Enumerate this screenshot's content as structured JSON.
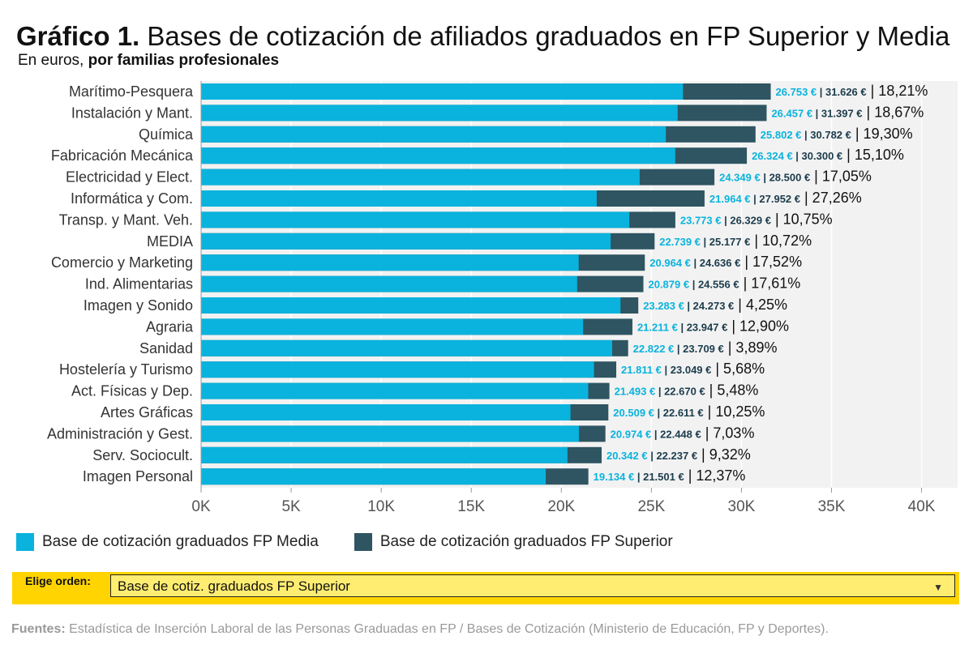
{
  "title": {
    "prefix": "Gráfico 1.",
    "text": "Bases de cotización de afiliados graduados en FP Superior y Media"
  },
  "subtitle": {
    "prefix": "En euros,",
    "emphasis": "por familias profesionales"
  },
  "colors": {
    "media": "#0ab3dd",
    "superior": "#2e5561",
    "plot_bg": "#f2f2f2",
    "media_label": "#0ab3dd",
    "superior_label": "#1c3c4c"
  },
  "legend": [
    {
      "name": "Base de cotización graduados FP Media",
      "color": "#0ab3dd"
    },
    {
      "name": "Base de cotización graduados FP Superior",
      "color": "#2e5561"
    }
  ],
  "control": {
    "label": "Elige orden:",
    "selected": "Base de cotiz. graduados FP Superior"
  },
  "source": {
    "prefix": "Fuentes:",
    "text": "Estadística de Inserción Laboral de las Personas Graduadas en FP / Bases de Cotización (Ministerio de Educación, FP y Deportes)."
  },
  "chart_data": {
    "type": "bar",
    "orientation": "horizontal",
    "xlim": [
      0,
      42000
    ],
    "xticks": [
      0,
      5000,
      10000,
      15000,
      20000,
      25000,
      30000,
      35000,
      40000
    ],
    "xtick_labels": [
      "0K",
      "5K",
      "10K",
      "15K",
      "20K",
      "25K",
      "30K",
      "35K",
      "40K"
    ],
    "grid": true,
    "legend_position": "bottom-left",
    "categories": [
      "Marítimo-Pesquera",
      "Instalación y Mant.",
      "Química",
      "Fabricación Mecánica",
      "Electricidad y Elect.",
      "Informática y Com.",
      "Transp. y Mant. Veh.",
      "MEDIA",
      "Comercio y Marketing",
      "Ind. Alimentarias",
      "Imagen y Sonido",
      "Agraria",
      "Sanidad",
      "Hostelería y Turismo",
      "Act. Físicas y Dep.",
      "Artes Gráficas",
      "Administración y Gest.",
      "Serv. Sociocult.",
      "Imagen Personal"
    ],
    "series": [
      {
        "name": "Base de cotización graduados FP Media",
        "values": [
          26753,
          26457,
          25802,
          26324,
          24349,
          21964,
          23773,
          22739,
          20964,
          20879,
          23283,
          21211,
          22822,
          21811,
          21493,
          20509,
          20974,
          20342,
          19134
        ]
      },
      {
        "name": "Base de cotización graduados FP Superior",
        "values": [
          31626,
          31397,
          30782,
          30300,
          28500,
          27952,
          26329,
          25177,
          24636,
          24556,
          24273,
          23947,
          23709,
          23049,
          22670,
          22611,
          22448,
          22237,
          21501
        ]
      }
    ],
    "labels_media": [
      "26.753 €",
      "26.457 €",
      "25.802 €",
      "26.324 €",
      "24.349 €",
      "21.964 €",
      "23.773 €",
      "22.739 €",
      "20.964 €",
      "20.879 €",
      "23.283 €",
      "21.211 €",
      "22.822 €",
      "21.811 €",
      "21.493 €",
      "20.509 €",
      "20.974 €",
      "20.342 €",
      "19.134 €"
    ],
    "labels_superior": [
      "31.626 €",
      "31.397 €",
      "30.782 €",
      "30.300 €",
      "28.500 €",
      "27.952 €",
      "26.329 €",
      "25.177 €",
      "24.636 €",
      "24.556 €",
      "24.273 €",
      "23.947 €",
      "23.709 €",
      "23.049 €",
      "22.670 €",
      "22.611 €",
      "22.448 €",
      "22.237 €",
      "21.501 €"
    ],
    "labels_pct": [
      "18,21%",
      "18,67%",
      "19,30%",
      "15,10%",
      "17,05%",
      "27,26%",
      "10,75%",
      "10,72%",
      "17,52%",
      "17,61%",
      "4,25%",
      "12,90%",
      "3,89%",
      "5,68%",
      "5,48%",
      "10,25%",
      "7,03%",
      "9,32%",
      "12,37%"
    ]
  }
}
